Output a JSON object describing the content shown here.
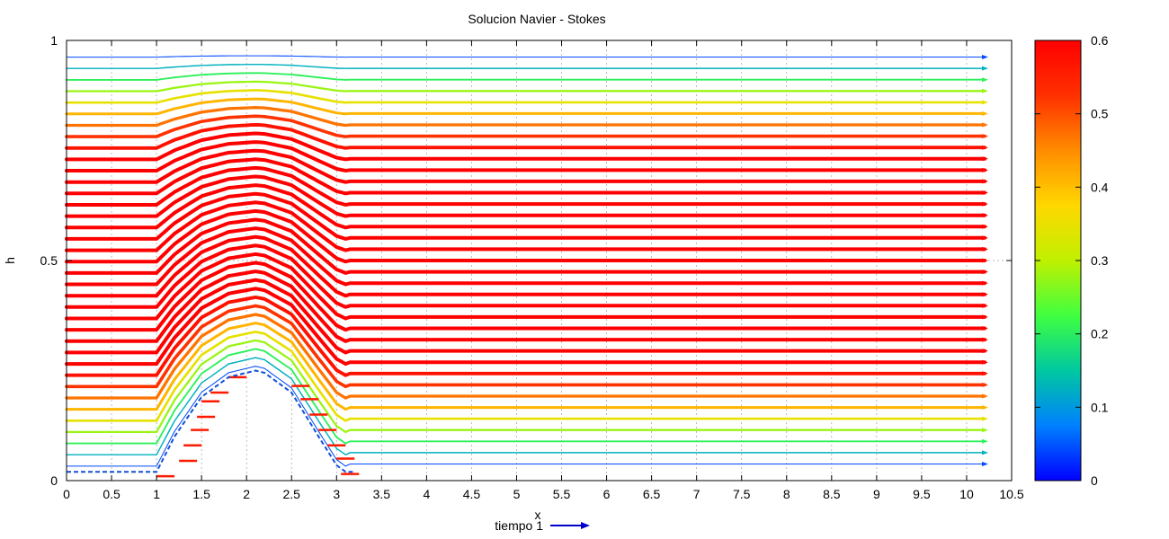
{
  "chart_data": {
    "type": "vector-field",
    "title": "Solucion Navier - Stokes",
    "xlabel": "x",
    "ylabel": "h",
    "xlim": [
      0,
      10.5
    ],
    "ylim": [
      0,
      1
    ],
    "xticks": [
      "0",
      "0.5",
      "1",
      "1.5",
      "2",
      "2.5",
      "3",
      "3.5",
      "4",
      "4.5",
      "5",
      "5.5",
      "6",
      "6.5",
      "7",
      "7.5",
      "8",
      "8.5",
      "9",
      "9.5",
      "10",
      "10.5"
    ],
    "yticks": [
      "0",
      "0.5",
      "1"
    ],
    "grid": true,
    "colorbar": {
      "range": [
        0,
        0.6
      ],
      "ticks": [
        "0",
        "0.1",
        "0.2",
        "0.3",
        "0.4",
        "0.5",
        "0.6"
      ],
      "colors": [
        "#0000ff",
        "#0080ff",
        "#00c8a0",
        "#40ff40",
        "#c0f000",
        "#ffd800",
        "#ff8c00",
        "#ff3000",
        "#ff0000"
      ]
    },
    "obstacle": {
      "description_points_x": [
        0.0,
        1.0,
        1.2,
        1.5,
        1.8,
        2.0,
        2.1,
        2.2,
        2.5,
        2.8,
        3.0,
        3.1
      ],
      "description_points_h": [
        0.02,
        0.02,
        0.1,
        0.19,
        0.235,
        0.245,
        0.25,
        0.245,
        0.2,
        0.1,
        0.035,
        0.02
      ]
    },
    "field_x_range": [
      0,
      10.2
    ],
    "field_rows": 37,
    "max_speed": 0.6,
    "legend": {
      "label": "tiempo 1",
      "color": "#0000cc"
    }
  }
}
